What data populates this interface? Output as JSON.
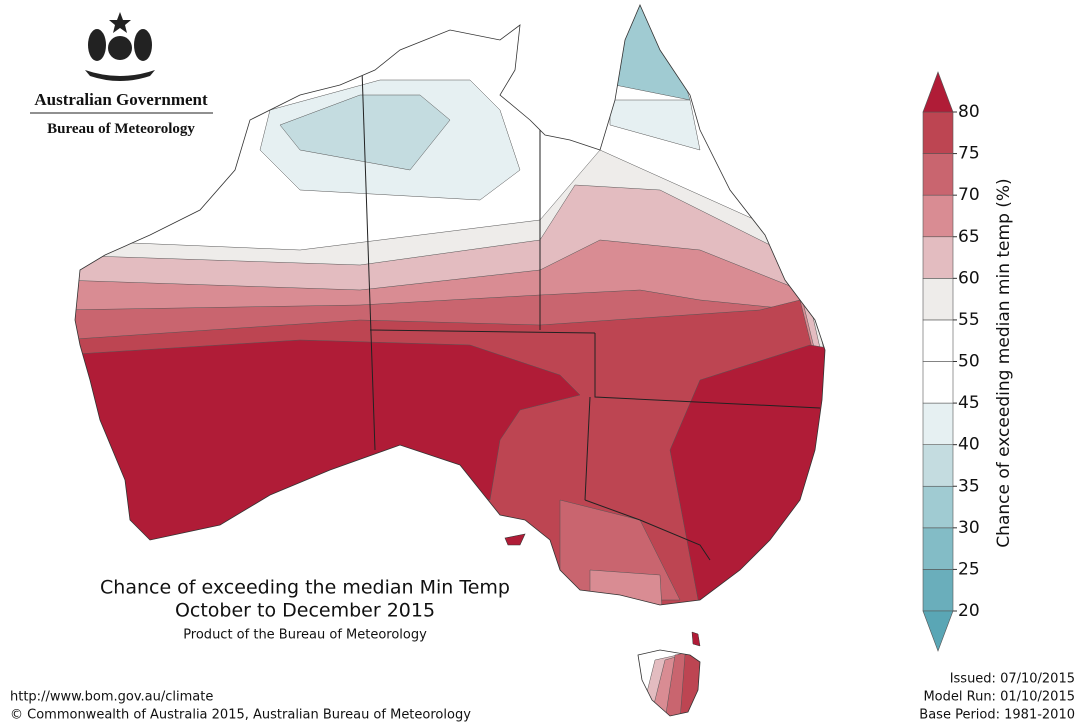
{
  "header": {
    "government": "Australian Government",
    "bureau": "Bureau of Meteorology"
  },
  "title": {
    "line1": "Chance of exceeding the median Min Temp",
    "line2": "October to December 2015",
    "subtitle": "Product of the Bureau of Meteorology"
  },
  "colorbar": {
    "label": "Chance of exceeding median min temp (%)",
    "ticks": [
      20,
      25,
      30,
      35,
      40,
      45,
      50,
      55,
      60,
      65,
      70,
      75,
      80
    ],
    "colors": [
      "#6aaebb",
      "#83bcc6",
      "#a0cbd2",
      "#c4dce0",
      "#e6f0f2",
      "#ffffff",
      "#ffffff",
      "#eeecea",
      "#e3bcc0",
      "#d98c93",
      "#c9656f",
      "#bd4552"
    ],
    "over_color": "#b01c37",
    "under_color": "#5aa6b5"
  },
  "footer": {
    "url": "http://www.bom.gov.au/climate",
    "copyright": "© Commonwealth of Australia 2015, Australian Bureau of Meteorology",
    "issued": "Issued: 07/10/2015",
    "model_run": "Model Run: 01/10/2015",
    "base_period": "Base Period: 1981-2010"
  }
}
